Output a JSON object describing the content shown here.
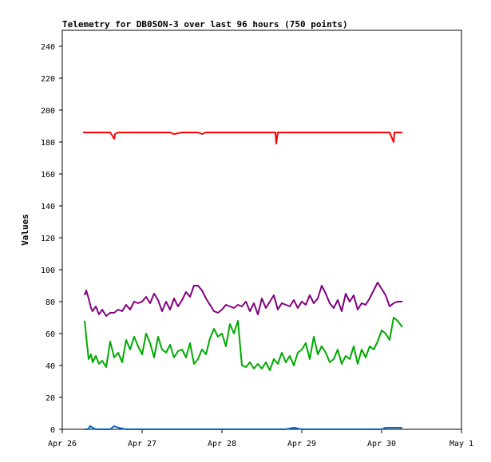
{
  "chart_data": {
    "type": "line",
    "title": "Telemetry for DB0SON-3 over last 96 hours (750 points)",
    "xlabel": "",
    "ylabel": "Values",
    "xlim": [
      "Apr 26",
      "May 1"
    ],
    "ylim": [
      0,
      250
    ],
    "x_ticks": [
      "Apr 26",
      "Apr 27",
      "Apr 28",
      "Apr 29",
      "Apr 30",
      "May 1"
    ],
    "y_ticks": [
      0,
      20,
      40,
      60,
      80,
      100,
      120,
      140,
      160,
      180,
      200,
      220,
      240
    ],
    "grid": false,
    "legend": "none",
    "series": [
      {
        "color": "#ff0000",
        "x_days": [
          0.26,
          0.35,
          0.42,
          0.5,
          0.55,
          0.6,
          0.64,
          0.65,
          0.66,
          0.7,
          0.8,
          0.9,
          1.0,
          1.1,
          1.2,
          1.3,
          1.35,
          1.4,
          1.5,
          1.6,
          1.7,
          1.75,
          1.8,
          1.9,
          2.0,
          2.1,
          2.2,
          2.3,
          2.35,
          2.4,
          2.5,
          2.6,
          2.67,
          2.68,
          2.7,
          2.8,
          2.9,
          3.0,
          3.1,
          3.2,
          3.3,
          3.35,
          3.4,
          3.5,
          3.6,
          3.7,
          3.8,
          3.9,
          4.0,
          4.1,
          4.15,
          4.16,
          4.2,
          4.26
        ],
        "values": [
          186,
          186,
          186,
          186,
          186,
          186,
          183,
          182,
          185,
          186,
          186,
          186,
          186,
          186,
          186,
          186,
          186,
          185,
          186,
          186,
          186,
          185,
          186,
          186,
          186,
          186,
          186,
          186,
          186,
          186,
          186,
          186,
          186,
          179,
          186,
          186,
          186,
          186,
          186,
          186,
          186,
          186,
          186,
          186,
          186,
          186,
          186,
          186,
          186,
          186,
          180,
          186,
          186,
          186
        ]
      },
      {
        "color": "#800080",
        "x_days": [
          0.28,
          0.3,
          0.33,
          0.36,
          0.38,
          0.42,
          0.46,
          0.5,
          0.55,
          0.6,
          0.65,
          0.7,
          0.75,
          0.8,
          0.85,
          0.9,
          0.95,
          1.0,
          1.05,
          1.1,
          1.15,
          1.2,
          1.25,
          1.3,
          1.35,
          1.4,
          1.45,
          1.5,
          1.55,
          1.6,
          1.65,
          1.7,
          1.75,
          1.8,
          1.85,
          1.9,
          1.95,
          2.0,
          2.05,
          2.1,
          2.15,
          2.2,
          2.25,
          2.3,
          2.35,
          2.4,
          2.45,
          2.5,
          2.55,
          2.6,
          2.65,
          2.7,
          2.75,
          2.8,
          2.85,
          2.9,
          2.95,
          3.0,
          3.05,
          3.1,
          3.15,
          3.2,
          3.25,
          3.3,
          3.35,
          3.4,
          3.45,
          3.5,
          3.55,
          3.6,
          3.65,
          3.7,
          3.75,
          3.8,
          3.85,
          3.9,
          3.95,
          4.0,
          4.05,
          4.1,
          4.15,
          4.2,
          4.26
        ],
        "values": [
          84,
          87,
          82,
          76,
          74,
          77,
          72,
          75,
          71,
          73,
          73,
          75,
          74,
          78,
          75,
          80,
          79,
          80,
          83,
          79,
          85,
          81,
          74,
          80,
          75,
          82,
          77,
          81,
          86,
          83,
          90,
          90,
          87,
          82,
          78,
          74,
          73,
          75,
          78,
          77,
          76,
          78,
          77,
          80,
          74,
          79,
          72,
          82,
          76,
          80,
          84,
          75,
          79,
          78,
          77,
          81,
          76,
          80,
          78,
          84,
          79,
          82,
          90,
          85,
          79,
          76,
          81,
          74,
          85,
          80,
          84,
          75,
          79,
          78,
          82,
          87,
          92,
          88,
          84,
          77,
          79,
          80,
          80
        ],
        "_note": ""
      },
      {
        "color": "#00aa00",
        "x_days": [
          0.28,
          0.3,
          0.33,
          0.36,
          0.38,
          0.42,
          0.46,
          0.5,
          0.55,
          0.6,
          0.65,
          0.7,
          0.75,
          0.8,
          0.85,
          0.9,
          0.95,
          1.0,
          1.05,
          1.1,
          1.15,
          1.2,
          1.25,
          1.3,
          1.35,
          1.4,
          1.45,
          1.5,
          1.55,
          1.6,
          1.65,
          1.7,
          1.75,
          1.8,
          1.85,
          1.9,
          1.95,
          2.0,
          2.05,
          2.1,
          2.15,
          2.2,
          2.25,
          2.3,
          2.35,
          2.4,
          2.45,
          2.5,
          2.55,
          2.6,
          2.65,
          2.7,
          2.75,
          2.8,
          2.85,
          2.9,
          2.95,
          3.0,
          3.05,
          3.1,
          3.15,
          3.2,
          3.25,
          3.3,
          3.35,
          3.4,
          3.45,
          3.5,
          3.55,
          3.6,
          3.65,
          3.7,
          3.75,
          3.8,
          3.85,
          3.9,
          3.95,
          4.0,
          4.05,
          4.1,
          4.15,
          4.2,
          4.26
        ],
        "values": [
          68,
          58,
          44,
          47,
          42,
          46,
          41,
          43,
          39,
          55,
          45,
          48,
          42,
          56,
          50,
          58,
          52,
          47,
          60,
          54,
          45,
          58,
          50,
          48,
          53,
          45,
          49,
          50,
          45,
          54,
          41,
          44,
          50,
          47,
          57,
          63,
          58,
          60,
          52,
          66,
          60,
          68,
          40,
          39,
          42,
          38,
          41,
          38,
          42,
          37,
          44,
          41,
          48,
          42,
          46,
          40,
          48,
          50,
          54,
          44,
          58,
          47,
          52,
          48,
          42,
          44,
          50,
          41,
          46,
          44,
          52,
          41,
          50,
          45,
          52,
          50,
          55,
          62,
          60,
          56,
          70,
          68,
          64
        ]
      },
      {
        "color": "#0066cc",
        "x_days": [
          0.28,
          0.32,
          0.35,
          0.38,
          0.42,
          0.5,
          0.6,
          0.65,
          0.7,
          0.8,
          1.0,
          1.5,
          2.0,
          2.5,
          2.8,
          2.9,
          3.0,
          3.5,
          4.0,
          4.05,
          4.1,
          4.26
        ],
        "values": [
          0,
          0,
          2,
          1,
          0,
          0,
          0,
          2,
          1,
          0,
          0,
          0,
          0,
          0,
          0,
          1,
          0,
          0,
          0,
          1,
          1,
          1
        ]
      }
    ]
  }
}
